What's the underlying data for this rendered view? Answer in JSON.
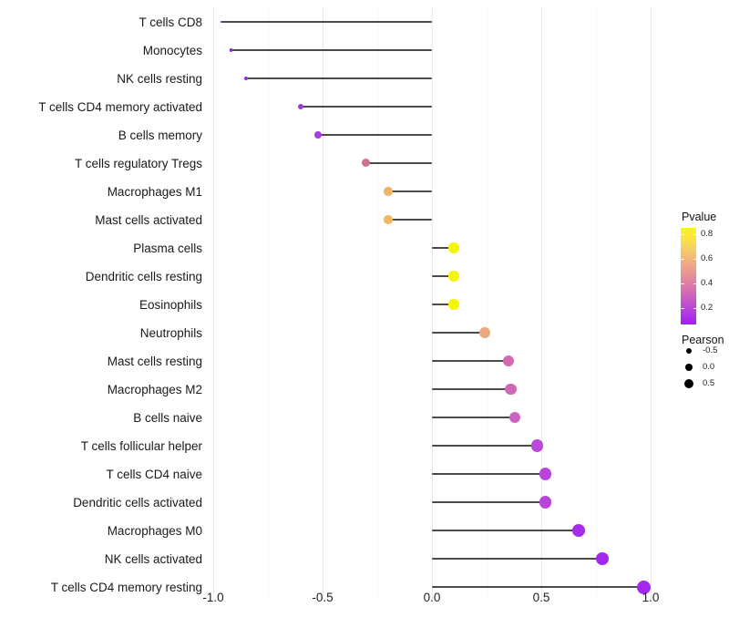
{
  "chart_data": {
    "type": "lollipop",
    "title": "",
    "xlabel": "",
    "ylabel": "",
    "xlim": [
      -1.03,
      1.11
    ],
    "x_tick_values": [
      -1.0,
      -0.5,
      0.0,
      0.5,
      1.0
    ],
    "x_tick_labels": [
      "-1.0",
      "-0.5",
      "0.0",
      "0.5",
      "1.0"
    ],
    "grid": {
      "major_step": 0.5,
      "minor_step": 0.25,
      "shown": true
    },
    "stem_color": "#4a4a4a",
    "categories": [
      "T cells CD8",
      "Monocytes",
      "NK cells resting",
      "T cells CD4 memory activated",
      "B cells memory",
      "T cells regulatory  Tregs",
      "Macrophages M1",
      "Mast cells activated",
      "Plasma cells",
      "Dendritic cells resting",
      "Eosinophils",
      "Neutrophils",
      "Mast cells resting",
      "Macrophages M2",
      "B cells naive",
      "T cells follicular helper",
      "T cells CD4 naive",
      "Dendritic cells activated",
      "Macrophages M0",
      "NK cells activated",
      "T cells CD4 memory resting"
    ],
    "series": [
      {
        "name": "Pearson",
        "points": [
          {
            "label": "T cells CD8",
            "pearson": -0.96,
            "color": "#7f24c9"
          },
          {
            "label": "Monocytes",
            "pearson": -0.92,
            "color": "#8a28d6"
          },
          {
            "label": "NK cells resting",
            "pearson": -0.85,
            "color": "#9330de"
          },
          {
            "label": "T cells CD4 memory activated",
            "pearson": -0.6,
            "color": "#a037de"
          },
          {
            "label": "B cells memory",
            "pearson": -0.52,
            "color": "#a940de"
          },
          {
            "label": "T cells regulatory  Tregs",
            "pearson": -0.3,
            "color": "#d0708e"
          },
          {
            "label": "Macrophages M1",
            "pearson": -0.2,
            "color": "#efb468"
          },
          {
            "label": "Mast cells activated",
            "pearson": -0.2,
            "color": "#efb863"
          },
          {
            "label": "Plasma cells",
            "pearson": 0.1,
            "color": "#f4f50a"
          },
          {
            "label": "Dendritic cells resting",
            "pearson": 0.1,
            "color": "#f4f50a"
          },
          {
            "label": "Eosinophils",
            "pearson": 0.1,
            "color": "#f4f50a"
          },
          {
            "label": "Neutrophils",
            "pearson": 0.24,
            "color": "#eca87e"
          },
          {
            "label": "Mast cells resting",
            "pearson": 0.35,
            "color": "#d369b2"
          },
          {
            "label": "Macrophages M2",
            "pearson": 0.36,
            "color": "#d168b5"
          },
          {
            "label": "B cells naive",
            "pearson": 0.38,
            "color": "#cb61c1"
          },
          {
            "label": "T cells follicular helper",
            "pearson": 0.48,
            "color": "#bc48d8"
          },
          {
            "label": "T cells CD4 naive",
            "pearson": 0.52,
            "color": "#b845db"
          },
          {
            "label": "Dendritic cells activated",
            "pearson": 0.52,
            "color": "#b946da"
          },
          {
            "label": "Macrophages M0",
            "pearson": 0.67,
            "color": "#a92be8"
          },
          {
            "label": "NK cells activated",
            "pearson": 0.78,
            "color": "#a527eb"
          },
          {
            "label": "T cells CD4 memory resting",
            "pearson": 0.97,
            "color": "#a228ec"
          }
        ]
      }
    ],
    "legend": {
      "position": "right",
      "pvalue": {
        "title": "Pvalue",
        "tick_labels": [
          "0.8",
          "0.6",
          "0.4",
          "0.2"
        ],
        "tick_values": [
          0.8,
          0.6,
          0.4,
          0.2
        ],
        "scale_top": 0.85,
        "scale_bottom": 0.07,
        "gradient_top_to_bottom": [
          "#f7f711",
          "#f8d95a",
          "#f2b37b",
          "#e68f97",
          "#d36bb5",
          "#ba45da",
          "#a21ff0"
        ]
      },
      "pearson": {
        "title": "Pearson",
        "items": [
          {
            "label": "-0.5",
            "radius": 3.2
          },
          {
            "label": "0.0",
            "radius": 4.4
          },
          {
            "label": "0.5",
            "radius": 5.4
          }
        ],
        "dot_color": "#000000"
      }
    }
  }
}
